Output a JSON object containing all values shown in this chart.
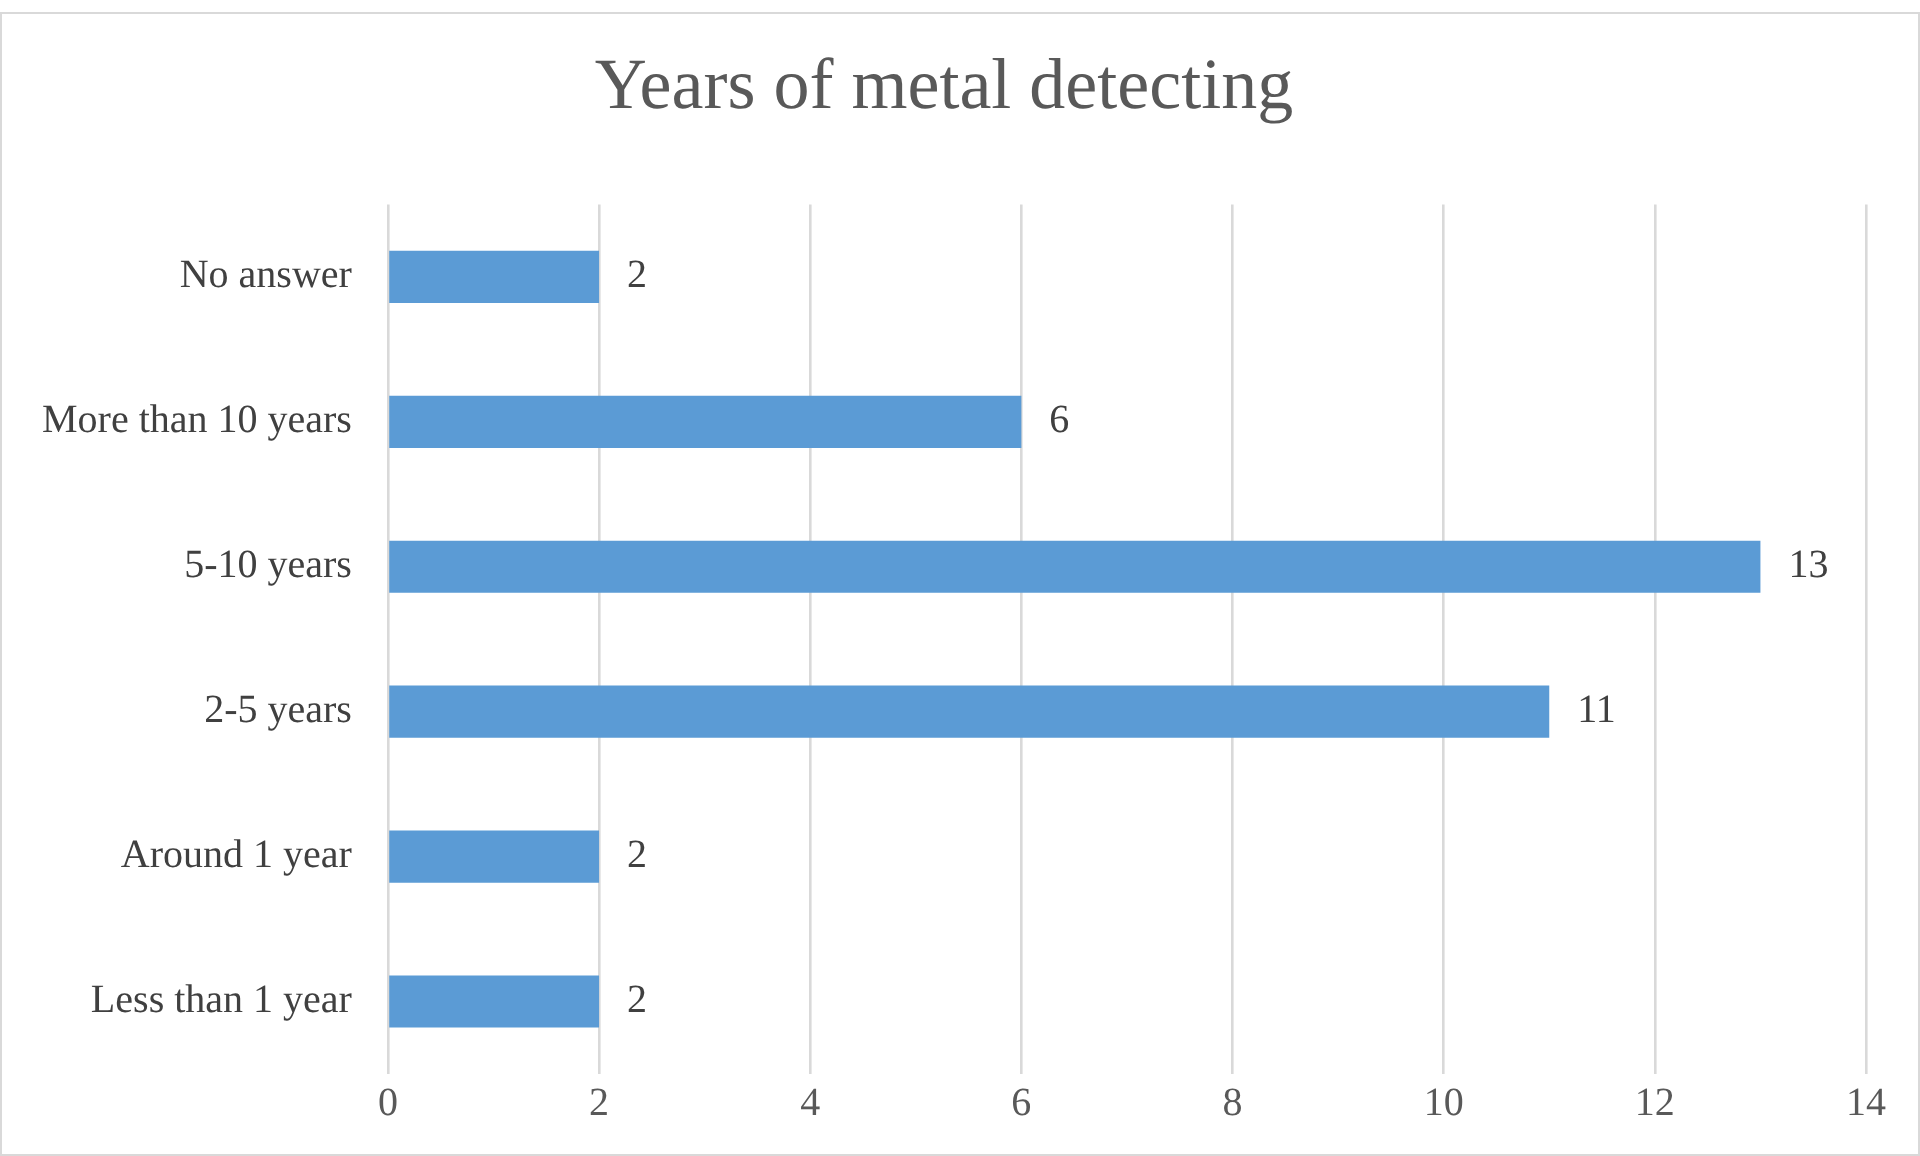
{
  "chart_data": {
    "type": "bar",
    "orientation": "horizontal",
    "title": "Years of metal detecting",
    "categories": [
      "No answer",
      "More than 10 years",
      "5-10 years",
      "2-5 years",
      "Around 1 year",
      "Less than 1 year"
    ],
    "values": [
      2,
      6,
      13,
      11,
      2,
      2
    ],
    "color": "#5b9bd5",
    "xlim": [
      0,
      14
    ],
    "xticks": [
      0,
      2,
      4,
      6,
      8,
      10,
      12,
      14
    ],
    "grid": "x",
    "data_labels": true,
    "legend": false
  }
}
